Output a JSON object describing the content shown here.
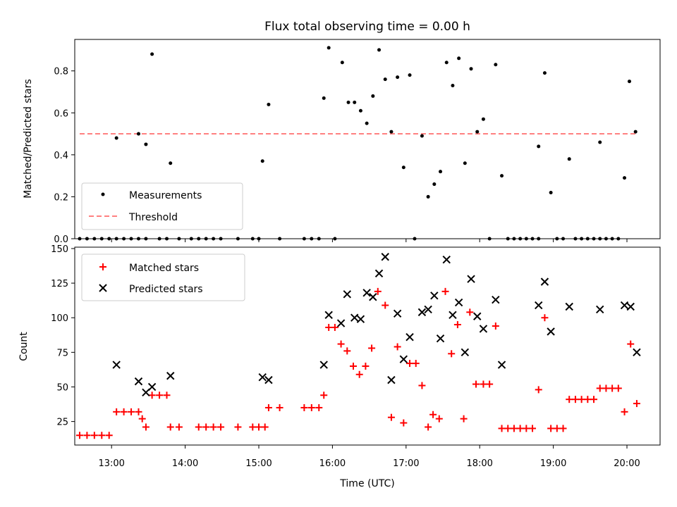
{
  "chart_data": [
    {
      "type": "scatter",
      "title": "Flux total observing time = 0.00 h",
      "ylabel": "Matched/Predicted stars",
      "xlabel": "",
      "xlim": [
        "12:30",
        "20:27"
      ],
      "ylim": [
        0,
        0.95
      ],
      "y_ticks": [
        "0.0",
        "0.2",
        "0.4",
        "0.6",
        "0.8"
      ],
      "legend": {
        "placement": "lower-left",
        "entries": [
          "Measurements",
          "Threshold"
        ]
      },
      "colors": {
        "measurements": "#000000",
        "threshold": "#ff8080"
      },
      "threshold": {
        "name": "Threshold",
        "value": 0.5,
        "x_start": "12:34",
        "x_end": "20:09"
      },
      "series": [
        {
          "name": "Measurements",
          "marker": "dot",
          "points": [
            [
              "12:34",
              0.0
            ],
            [
              "12:40",
              0.0
            ],
            [
              "12:46",
              0.0
            ],
            [
              "12:52",
              0.0
            ],
            [
              "12:58",
              0.0
            ],
            [
              "13:04",
              0.0
            ],
            [
              "13:04",
              0.48
            ],
            [
              "13:10",
              0.0
            ],
            [
              "13:16",
              0.0
            ],
            [
              "13:22",
              0.0
            ],
            [
              "13:22",
              0.5
            ],
            [
              "13:28",
              0.0
            ],
            [
              "13:28",
              0.45
            ],
            [
              "13:33",
              0.88
            ],
            [
              "13:39",
              0.0
            ],
            [
              "13:45",
              0.0
            ],
            [
              "13:48",
              0.36
            ],
            [
              "13:55",
              0.0
            ],
            [
              "14:05",
              0.0
            ],
            [
              "14:11",
              0.0
            ],
            [
              "14:17",
              0.0
            ],
            [
              "14:23",
              0.0
            ],
            [
              "14:29",
              0.0
            ],
            [
              "14:43",
              0.0
            ],
            [
              "14:55",
              0.0
            ],
            [
              "15:00",
              0.0
            ],
            [
              "15:03",
              0.37
            ],
            [
              "15:08",
              0.64
            ],
            [
              "15:17",
              0.0
            ],
            [
              "15:37",
              0.0
            ],
            [
              "15:43",
              0.0
            ],
            [
              "15:49",
              0.0
            ],
            [
              "15:53",
              0.67
            ],
            [
              "15:57",
              0.91
            ],
            [
              "16:02",
              0.0
            ],
            [
              "16:08",
              0.84
            ],
            [
              "16:13",
              0.65
            ],
            [
              "16:18",
              0.65
            ],
            [
              "16:23",
              0.61
            ],
            [
              "16:28",
              0.55
            ],
            [
              "16:33",
              0.68
            ],
            [
              "16:38",
              0.9
            ],
            [
              "16:43",
              0.76
            ],
            [
              "16:48",
              0.51
            ],
            [
              "16:53",
              0.77
            ],
            [
              "16:58",
              0.34
            ],
            [
              "17:03",
              0.78
            ],
            [
              "17:07",
              0.0
            ],
            [
              "17:13",
              0.49
            ],
            [
              "17:18",
              0.2
            ],
            [
              "17:23",
              0.26
            ],
            [
              "17:28",
              0.32
            ],
            [
              "17:33",
              0.84
            ],
            [
              "17:38",
              0.73
            ],
            [
              "17:43",
              0.86
            ],
            [
              "17:48",
              0.36
            ],
            [
              "17:53",
              0.81
            ],
            [
              "17:58",
              0.51
            ],
            [
              "18:03",
              0.57
            ],
            [
              "18:08",
              0.0
            ],
            [
              "18:13",
              0.83
            ],
            [
              "18:18",
              0.3
            ],
            [
              "18:23",
              0.0
            ],
            [
              "18:28",
              0.0
            ],
            [
              "18:33",
              0.0
            ],
            [
              "18:38",
              0.0
            ],
            [
              "18:43",
              0.0
            ],
            [
              "18:48",
              0.0
            ],
            [
              "18:48",
              0.44
            ],
            [
              "18:53",
              0.79
            ],
            [
              "18:58",
              0.22
            ],
            [
              "19:03",
              0.0
            ],
            [
              "19:08",
              0.0
            ],
            [
              "19:13",
              0.38
            ],
            [
              "19:18",
              0.0
            ],
            [
              "19:23",
              0.0
            ],
            [
              "19:28",
              0.0
            ],
            [
              "19:33",
              0.0
            ],
            [
              "19:38",
              0.0
            ],
            [
              "19:38",
              0.46
            ],
            [
              "19:43",
              0.0
            ],
            [
              "19:48",
              0.0
            ],
            [
              "19:53",
              0.0
            ],
            [
              "19:58",
              0.29
            ],
            [
              "20:02",
              0.75
            ],
            [
              "20:07",
              0.51
            ]
          ]
        }
      ]
    },
    {
      "type": "scatter",
      "title": "",
      "xlabel": "Time (UTC)",
      "ylabel": "Count",
      "xlim": [
        "12:30",
        "20:27"
      ],
      "ylim": [
        8,
        151
      ],
      "x_ticks": [
        "13:00",
        "14:00",
        "15:00",
        "16:00",
        "17:00",
        "18:00",
        "19:00",
        "20:00"
      ],
      "y_ticks": [
        "25",
        "50",
        "75",
        "100",
        "125",
        "150"
      ],
      "legend": {
        "placement": "upper-left",
        "entries": [
          "Matched stars",
          "Predicted stars"
        ]
      },
      "colors": {
        "matched": "#ff0000",
        "predicted": "#000000"
      },
      "series": [
        {
          "name": "Matched stars",
          "marker": "plus",
          "points": [
            [
              "12:34",
              15
            ],
            [
              "12:40",
              15
            ],
            [
              "12:46",
              15
            ],
            [
              "12:52",
              15
            ],
            [
              "12:58",
              15
            ],
            [
              "13:04",
              32
            ],
            [
              "13:10",
              32
            ],
            [
              "13:16",
              32
            ],
            [
              "13:22",
              32
            ],
            [
              "13:25",
              27
            ],
            [
              "13:28",
              21
            ],
            [
              "13:33",
              44
            ],
            [
              "13:39",
              44
            ],
            [
              "13:45",
              44
            ],
            [
              "13:48",
              21
            ],
            [
              "13:55",
              21
            ],
            [
              "14:11",
              21
            ],
            [
              "14:17",
              21
            ],
            [
              "14:23",
              21
            ],
            [
              "14:29",
              21
            ],
            [
              "14:43",
              21
            ],
            [
              "14:55",
              21
            ],
            [
              "15:00",
              21
            ],
            [
              "15:05",
              21
            ],
            [
              "15:08",
              35
            ],
            [
              "15:17",
              35
            ],
            [
              "15:37",
              35
            ],
            [
              "15:43",
              35
            ],
            [
              "15:49",
              35
            ],
            [
              "15:53",
              44
            ],
            [
              "15:57",
              93
            ],
            [
              "16:02",
              93
            ],
            [
              "16:07",
              81
            ],
            [
              "16:12",
              76
            ],
            [
              "16:17",
              65
            ],
            [
              "16:22",
              59
            ],
            [
              "16:27",
              65
            ],
            [
              "16:32",
              78
            ],
            [
              "16:37",
              119
            ],
            [
              "16:43",
              109
            ],
            [
              "16:48",
              28
            ],
            [
              "16:53",
              79
            ],
            [
              "16:58",
              24
            ],
            [
              "17:03",
              67
            ],
            [
              "17:08",
              67
            ],
            [
              "17:13",
              51
            ],
            [
              "17:18",
              21
            ],
            [
              "17:22",
              30
            ],
            [
              "17:27",
              27
            ],
            [
              "17:32",
              119
            ],
            [
              "17:37",
              74
            ],
            [
              "17:42",
              95
            ],
            [
              "17:47",
              27
            ],
            [
              "17:52",
              104
            ],
            [
              "17:57",
              52
            ],
            [
              "18:03",
              52
            ],
            [
              "18:08",
              52
            ],
            [
              "18:13",
              94
            ],
            [
              "18:18",
              20
            ],
            [
              "18:23",
              20
            ],
            [
              "18:28",
              20
            ],
            [
              "18:33",
              20
            ],
            [
              "18:38",
              20
            ],
            [
              "18:43",
              20
            ],
            [
              "18:48",
              48
            ],
            [
              "18:53",
              100
            ],
            [
              "18:58",
              20
            ],
            [
              "19:03",
              20
            ],
            [
              "19:08",
              20
            ],
            [
              "19:13",
              41
            ],
            [
              "19:18",
              41
            ],
            [
              "19:23",
              41
            ],
            [
              "19:28",
              41
            ],
            [
              "19:33",
              41
            ],
            [
              "19:38",
              49
            ],
            [
              "19:43",
              49
            ],
            [
              "19:48",
              49
            ],
            [
              "19:53",
              49
            ],
            [
              "19:58",
              32
            ],
            [
              "20:03",
              81
            ],
            [
              "20:08",
              38
            ]
          ]
        },
        {
          "name": "Predicted stars",
          "marker": "x",
          "points": [
            [
              "13:04",
              66
            ],
            [
              "13:22",
              54
            ],
            [
              "13:28",
              46
            ],
            [
              "13:33",
              50
            ],
            [
              "13:48",
              58
            ],
            [
              "15:03",
              57
            ],
            [
              "15:08",
              55
            ],
            [
              "15:53",
              66
            ],
            [
              "15:57",
              102
            ],
            [
              "16:07",
              96
            ],
            [
              "16:12",
              117
            ],
            [
              "16:18",
              100
            ],
            [
              "16:23",
              99
            ],
            [
              "16:28",
              118
            ],
            [
              "16:33",
              115
            ],
            [
              "16:38",
              132
            ],
            [
              "16:43",
              144
            ],
            [
              "16:48",
              55
            ],
            [
              "16:53",
              103
            ],
            [
              "16:58",
              70
            ],
            [
              "17:03",
              86
            ],
            [
              "17:13",
              104
            ],
            [
              "17:18",
              106
            ],
            [
              "17:23",
              116
            ],
            [
              "17:28",
              85
            ],
            [
              "17:33",
              142
            ],
            [
              "17:38",
              102
            ],
            [
              "17:43",
              111
            ],
            [
              "17:48",
              75
            ],
            [
              "17:53",
              128
            ],
            [
              "17:58",
              101
            ],
            [
              "18:03",
              92
            ],
            [
              "18:13",
              113
            ],
            [
              "18:18",
              66
            ],
            [
              "18:48",
              109
            ],
            [
              "18:53",
              126
            ],
            [
              "18:58",
              90
            ],
            [
              "19:13",
              108
            ],
            [
              "19:38",
              106
            ],
            [
              "19:58",
              109
            ],
            [
              "20:03",
              108
            ],
            [
              "20:08",
              75
            ]
          ]
        }
      ]
    }
  ]
}
